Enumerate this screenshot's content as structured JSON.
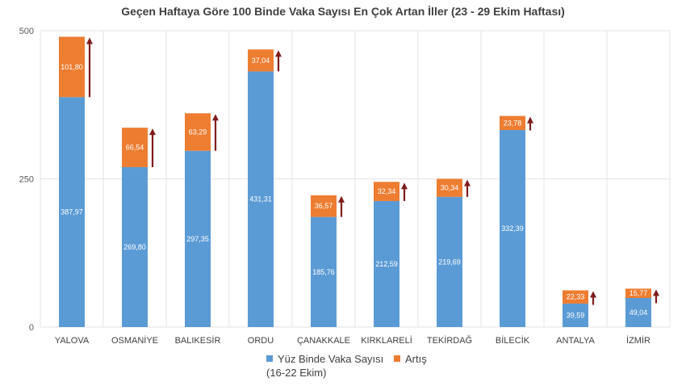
{
  "chart_data": {
    "type": "bar",
    "stacked": true,
    "title": "Geçen Haftaya Göre 100 Binde Vaka Sayısı En Çok Artan İller (23 - 29 Ekim Haftası)",
    "categories": [
      "YALOVA",
      "OSMANİYE",
      "BALIKESİR",
      "ORDU",
      "ÇANAKKALE",
      "KIRKLARELİ",
      "TEKİRDAĞ",
      "BİLECİK",
      "ANTALYA",
      "İZMİR"
    ],
    "series": [
      {
        "name": "Yüz Binde Vaka Sayısı (16-22 Ekim)",
        "values": [
          387.97,
          269.8,
          297.35,
          431.31,
          185.76,
          212.59,
          219.69,
          332.39,
          39.59,
          49.04
        ],
        "labels": [
          "387,97",
          "269,80",
          "297,35",
          "431,31",
          "185,76",
          "212,59",
          "219,69",
          "332,39",
          "39,59",
          "49,04"
        ],
        "color": "#5b9bd5"
      },
      {
        "name": "Artış",
        "values": [
          101.8,
          66.54,
          63.29,
          37.04,
          36.57,
          32.34,
          30.34,
          23.78,
          22.33,
          15.77
        ],
        "labels": [
          "101,80",
          "66,54",
          "63,29",
          "37,04",
          "36,57",
          "32,34",
          "30,34",
          "23,78",
          "22,33",
          "15,77"
        ],
        "color": "#ed7d31"
      }
    ],
    "ylim": [
      0,
      500
    ],
    "yticks": [
      "0",
      "250",
      "500"
    ],
    "legend_position": "bottom",
    "arrow_color": "#7f1d1d",
    "grid": true
  },
  "legend": {
    "series1_line1": "Yüz Binde Vaka Sayısı",
    "series1_line2": "(16-22 Ekim)",
    "series2": "Artış"
  }
}
